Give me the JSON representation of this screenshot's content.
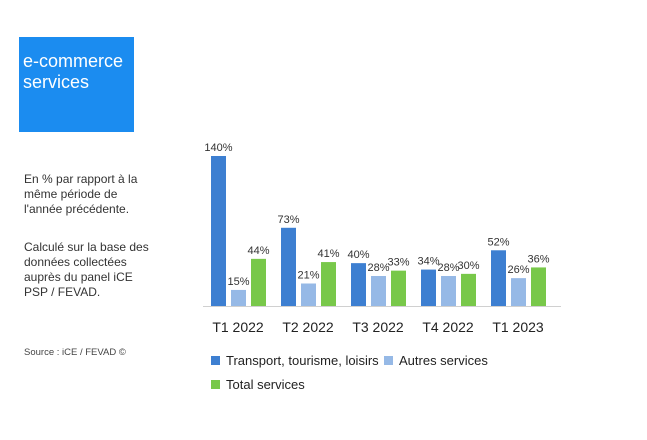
{
  "title": {
    "line1": "e-commerce",
    "line2": "services"
  },
  "notes": {
    "note1": "En % par rapport à la même période de l'année précédente.",
    "note2": "Calculé sur la base des données collectées auprès du panel iCE PSP / FEVAD."
  },
  "source": "Source : iCE / FEVAD ©",
  "colors": {
    "transport": "#3d7fd1",
    "autres": "#96b9e6",
    "total": "#78c84a"
  },
  "chart_data": {
    "type": "bar",
    "categories": [
      "T1 2022",
      "T2 2022",
      "T3 2022",
      "T4 2022",
      "T1 2023"
    ],
    "series": [
      {
        "name": "Transport, tourisme, loisirs",
        "values": [
          140,
          73,
          40,
          34,
          52
        ],
        "labels": [
          "140%",
          "73%",
          "40%",
          "34%",
          "52%"
        ]
      },
      {
        "name": "Autres services",
        "values": [
          15,
          21,
          28,
          28,
          26
        ],
        "labels": [
          "15%",
          "21%",
          "28%",
          "28%",
          "26%"
        ]
      },
      {
        "name": "Total services",
        "values": [
          44,
          41,
          33,
          30,
          36
        ],
        "labels": [
          "44%",
          "41%",
          "33%",
          "30%",
          "36%"
        ]
      }
    ],
    "ylim": [
      0,
      140
    ],
    "grid": false,
    "legend_position": "bottom"
  }
}
